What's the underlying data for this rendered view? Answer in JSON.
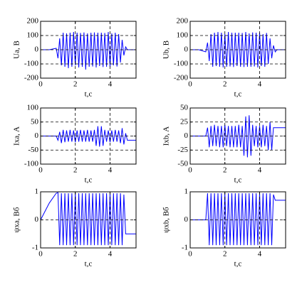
{
  "chart_data": [
    {
      "type": "line",
      "ylabel": "Ua, B",
      "xlabel": "t,c",
      "color": "#0000ff",
      "grid": true,
      "xlim": [
        0,
        5.5
      ],
      "xticks": [
        0,
        2,
        4
      ],
      "ylim": [
        -200,
        200
      ],
      "yticks": [
        -200,
        -100,
        0,
        100,
        200
      ],
      "x": [
        0,
        0.5,
        0.9,
        1,
        1.1,
        1.2,
        1.3,
        1.4,
        1.5,
        1.6,
        1.7,
        1.8,
        1.9,
        2,
        2.1,
        2.2,
        2.3,
        2.4,
        2.5,
        2.6,
        2.7,
        2.8,
        2.9,
        3,
        3.1,
        3.2,
        3.3,
        3.4,
        3.5,
        3.6,
        3.7,
        3.8,
        3.9,
        4,
        4.1,
        4.2,
        4.3,
        4.4,
        4.5,
        4.6,
        4.7,
        4.8,
        4.9,
        5,
        5.5
      ],
      "values": [
        0,
        0,
        10,
        -60,
        80,
        -110,
        120,
        -120,
        115,
        -130,
        120,
        -120,
        125,
        -110,
        120,
        -125,
        118,
        -120,
        122,
        -140,
        115,
        -120,
        120,
        -118,
        122,
        -125,
        120,
        -115,
        120,
        -122,
        118,
        -120,
        125,
        -120,
        115,
        -110,
        120,
        -118,
        110,
        -90,
        70,
        -40,
        20,
        0,
        0
      ]
    },
    {
      "type": "line",
      "ylabel": "Ub, B",
      "xlabel": "t,c",
      "color": "#0000ff",
      "grid": true,
      "xlim": [
        0,
        5.5
      ],
      "xticks": [
        0,
        2,
        4
      ],
      "ylim": [
        -200,
        200
      ],
      "yticks": [
        -200,
        -100,
        0,
        100,
        200
      ],
      "x": [
        0,
        0.5,
        0.9,
        1,
        1.1,
        1.2,
        1.3,
        1.4,
        1.5,
        1.6,
        1.7,
        1.8,
        1.9,
        2,
        2.1,
        2.2,
        2.3,
        2.4,
        2.5,
        2.6,
        2.7,
        2.8,
        2.9,
        3,
        3.1,
        3.2,
        3.3,
        3.4,
        3.5,
        3.6,
        3.7,
        3.8,
        3.9,
        4,
        4.1,
        4.2,
        4.3,
        4.4,
        4.5,
        4.6,
        4.7,
        4.8,
        4.9,
        5,
        5.5
      ],
      "values": [
        0,
        0,
        -15,
        50,
        -80,
        110,
        -120,
        120,
        -115,
        125,
        -120,
        120,
        -125,
        110,
        -120,
        125,
        -118,
        120,
        -122,
        120,
        -115,
        120,
        -120,
        118,
        -122,
        125,
        -120,
        115,
        -120,
        122,
        -118,
        120,
        -125,
        120,
        -115,
        110,
        -120,
        118,
        -100,
        80,
        -60,
        30,
        -15,
        0,
        0
      ]
    },
    {
      "type": "line",
      "ylabel": "Ixa, A",
      "xlabel": "t,c",
      "color": "#0000ff",
      "grid": true,
      "xlim": [
        0,
        5.5
      ],
      "xticks": [
        0,
        2,
        4
      ],
      "ylim": [
        -100,
        100
      ],
      "yticks": [
        -100,
        -50,
        0,
        50,
        100
      ],
      "x": [
        0,
        0.5,
        0.9,
        1,
        1.1,
        1.2,
        1.3,
        1.4,
        1.5,
        1.6,
        1.7,
        1.8,
        1.9,
        2,
        2.1,
        2.2,
        2.3,
        2.4,
        2.5,
        2.6,
        2.7,
        2.8,
        2.9,
        3,
        3.1,
        3.2,
        3.3,
        3.4,
        3.5,
        3.6,
        3.7,
        3.8,
        3.9,
        4,
        4.1,
        4.2,
        4.3,
        4.4,
        4.5,
        4.6,
        4.7,
        4.8,
        4.9,
        5,
        5.5
      ],
      "values": [
        0,
        0,
        0,
        -15,
        15,
        -25,
        22,
        -22,
        20,
        -20,
        22,
        -20,
        20,
        -22,
        20,
        -20,
        22,
        -20,
        20,
        -20,
        22,
        -20,
        20,
        -20,
        22,
        -35,
        35,
        -38,
        35,
        -35,
        22,
        -20,
        20,
        -22,
        20,
        -20,
        22,
        -20,
        20,
        -25,
        28,
        -30,
        10,
        -15,
        -15
      ]
    },
    {
      "type": "line",
      "ylabel": "Ixb, A",
      "xlabel": "t,c",
      "color": "#0000ff",
      "grid": true,
      "xlim": [
        0,
        5.5
      ],
      "xticks": [
        0,
        2,
        4
      ],
      "ylim": [
        -50,
        50
      ],
      "yticks": [
        -50,
        -25,
        0,
        25,
        50
      ],
      "x": [
        0,
        0.5,
        0.9,
        1,
        1.1,
        1.2,
        1.3,
        1.4,
        1.5,
        1.6,
        1.7,
        1.8,
        1.9,
        2,
        2.1,
        2.2,
        2.3,
        2.4,
        2.5,
        2.6,
        2.7,
        2.8,
        2.9,
        3,
        3.1,
        3.2,
        3.3,
        3.4,
        3.5,
        3.6,
        3.7,
        3.8,
        3.9,
        4,
        4.1,
        4.2,
        4.3,
        4.4,
        4.5,
        4.6,
        4.7,
        4.8,
        4.9,
        5,
        5.5
      ],
      "values": [
        0,
        0,
        0,
        15,
        -20,
        18,
        -18,
        20,
        -18,
        18,
        -20,
        18,
        -20,
        20,
        -18,
        18,
        -20,
        18,
        -20,
        18,
        -20,
        20,
        -20,
        18,
        -35,
        35,
        -38,
        37,
        -35,
        20,
        -18,
        18,
        -20,
        18,
        -20,
        20,
        -18,
        18,
        -25,
        25,
        -25,
        15,
        15,
        15,
        15
      ]
    },
    {
      "type": "line",
      "ylabel": "ψxa, Вб",
      "xlabel": "t,c",
      "color": "#0000ff",
      "grid": true,
      "xlim": [
        0,
        5.5
      ],
      "xticks": [
        0,
        2,
        4
      ],
      "ylim": [
        -1,
        1
      ],
      "yticks": [
        -1,
        0,
        1
      ],
      "x": [
        0,
        0.5,
        0.9,
        1,
        1.1,
        1.2,
        1.3,
        1.4,
        1.5,
        1.6,
        1.7,
        1.8,
        1.9,
        2,
        2.1,
        2.2,
        2.3,
        2.4,
        2.5,
        2.6,
        2.7,
        2.8,
        2.9,
        3,
        3.1,
        3.2,
        3.3,
        3.4,
        3.5,
        3.6,
        3.7,
        3.8,
        3.9,
        4,
        4.1,
        4.2,
        4.3,
        4.4,
        4.5,
        4.6,
        4.7,
        4.8,
        4.9,
        5,
        5.5
      ],
      "values": [
        0,
        0.6,
        0.95,
        0.97,
        -0.9,
        0.95,
        -0.9,
        0.95,
        -0.9,
        0.95,
        -0.9,
        0.95,
        -0.9,
        0.95,
        -0.9,
        0.95,
        -0.9,
        0.95,
        -0.9,
        0.95,
        -0.9,
        0.95,
        -0.9,
        0.95,
        -0.9,
        0.95,
        -0.9,
        0.95,
        -0.9,
        0.95,
        -0.9,
        0.95,
        -0.9,
        0.95,
        -0.9,
        0.95,
        -0.9,
        0.95,
        -0.9,
        0.95,
        -0.9,
        0.9,
        -0.5,
        -0.5,
        -0.5
      ]
    },
    {
      "type": "line",
      "ylabel": "ψxb, Вб",
      "xlabel": "t,c",
      "color": "#0000ff",
      "grid": true,
      "xlim": [
        0,
        5.5
      ],
      "xticks": [
        0,
        2,
        4
      ],
      "ylim": [
        -1,
        1
      ],
      "yticks": [
        -1,
        0,
        1
      ],
      "x": [
        0,
        0.5,
        0.9,
        1,
        1.1,
        1.2,
        1.3,
        1.4,
        1.5,
        1.6,
        1.7,
        1.8,
        1.9,
        2,
        2.1,
        2.2,
        2.3,
        2.4,
        2.5,
        2.6,
        2.7,
        2.8,
        2.9,
        3,
        3.1,
        3.2,
        3.3,
        3.4,
        3.5,
        3.6,
        3.7,
        3.8,
        3.9,
        4,
        4.1,
        4.2,
        4.3,
        4.4,
        4.5,
        4.6,
        4.7,
        4.8,
        4.9,
        5,
        5.5
      ],
      "values": [
        0,
        0,
        0,
        0.95,
        -0.9,
        0.95,
        -0.9,
        0.95,
        -0.9,
        0.95,
        -0.9,
        0.95,
        -0.9,
        0.95,
        -0.9,
        0.95,
        -0.9,
        0.95,
        -0.9,
        0.95,
        -0.9,
        0.95,
        -0.9,
        0.95,
        -0.9,
        0.95,
        -0.9,
        0.95,
        -0.9,
        0.95,
        -0.9,
        0.95,
        -0.9,
        0.95,
        -0.9,
        0.95,
        -0.9,
        0.95,
        -0.9,
        0.95,
        -0.9,
        0.9,
        0.7,
        0.7,
        0.7
      ]
    }
  ]
}
